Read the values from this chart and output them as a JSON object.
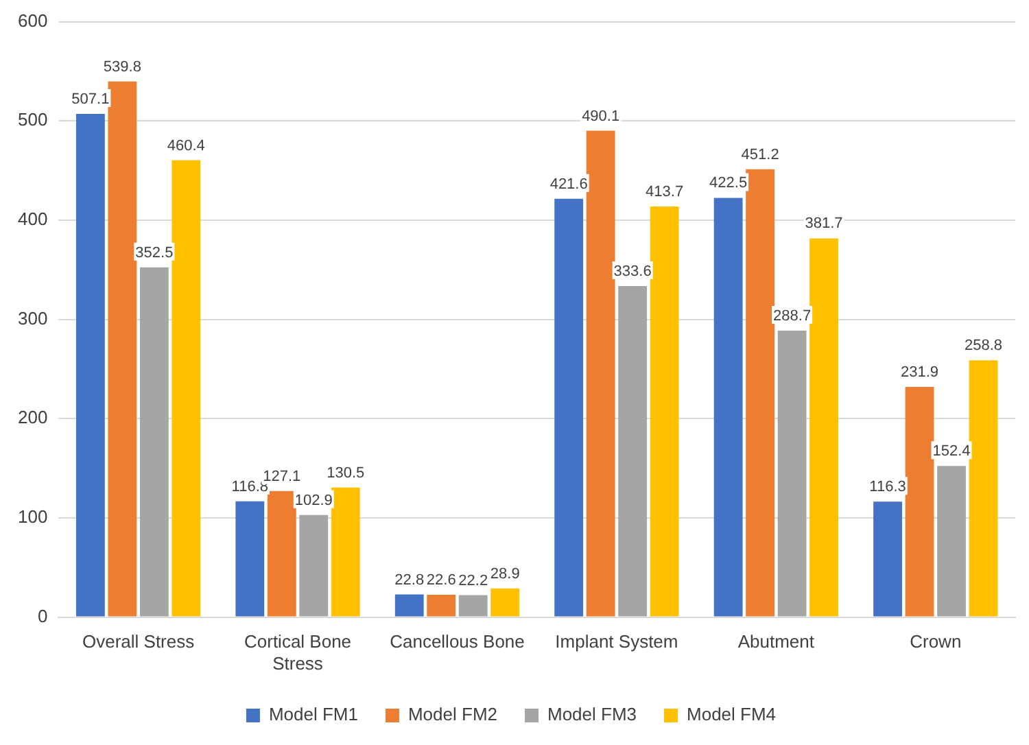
{
  "chart_data": {
    "type": "bar",
    "categories": [
      "Overall Stress",
      "Cortical Bone Stress",
      "Cancellous Bone",
      "Implant System",
      "Abutment",
      "Crown"
    ],
    "series": [
      {
        "name": "Model FM1",
        "color": "#4472c4",
        "values": [
          507.1,
          116.8,
          22.8,
          421.6,
          422.5,
          116.3
        ]
      },
      {
        "name": "Model FM2",
        "color": "#ed7d31",
        "values": [
          539.8,
          127.1,
          22.6,
          490.1,
          451.2,
          231.9
        ]
      },
      {
        "name": "Model FM3",
        "color": "#a5a5a5",
        "values": [
          352.5,
          102.9,
          22.2,
          333.6,
          288.7,
          152.4
        ]
      },
      {
        "name": "Model FM4",
        "color": "#ffc000",
        "values": [
          460.4,
          130.5,
          28.9,
          413.7,
          381.7,
          258.8
        ]
      }
    ],
    "ylim": [
      0,
      600
    ],
    "yticks": [
      0,
      100,
      200,
      300,
      400,
      500,
      600
    ],
    "grid": "y",
    "legend": "bottom",
    "data_labels": true
  }
}
